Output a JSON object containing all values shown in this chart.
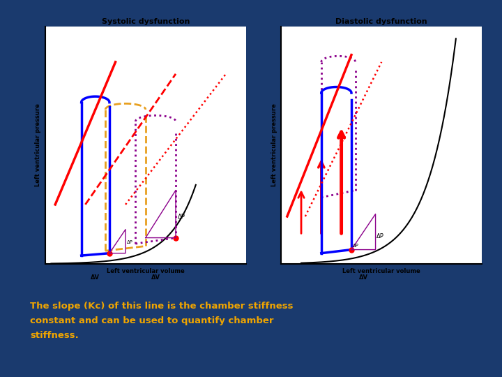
{
  "bg_dark": "#1a3a6e",
  "bg_white": "#f0f0f0",
  "title_left": "Systolic dysfunction",
  "title_right": "Diastolic dysfunction",
  "xlabel": "Left ventricular volume",
  "ylabel": "Left ventricular pressure",
  "text_line1": "The slope (Kc) of this line is the chamber stiffness",
  "text_line2": "constant and can be used to quantify chamber",
  "text_line3": "stiffness.",
  "text_color": "#f0a500",
  "font_size_title": 8,
  "font_size_text": 9.5,
  "font_size_label": 6,
  "font_size_annot": 5
}
